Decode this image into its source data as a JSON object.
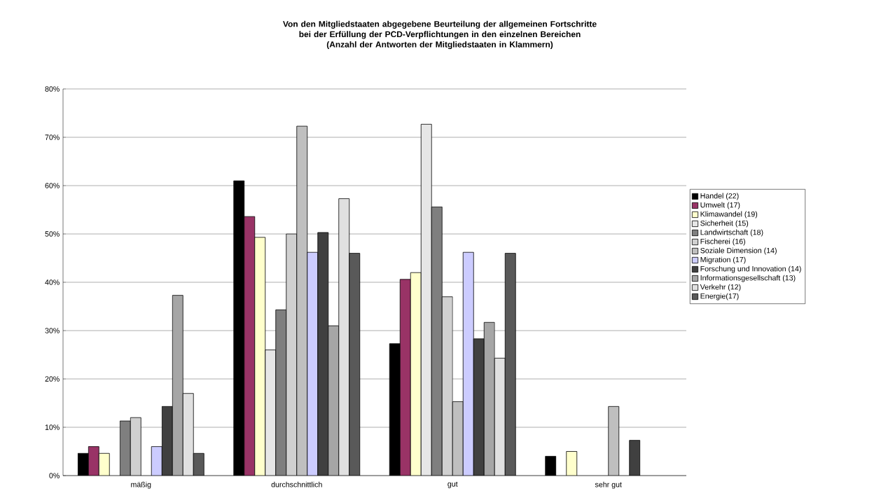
{
  "chart_data": {
    "type": "bar",
    "title": "Von den Mitgliedstaaten abgegebene Beurteilung der allgemeinen Fortschritte bei der Erfüllung der PCD-Verpflichtungen in den einzelnen Bereichen",
    "subtitle": "(Anzahl der Antworten der Mitgliedstaaten in Klammern)",
    "categories": [
      "mäßig",
      "durchschnittlich",
      "gut",
      "sehr gut"
    ],
    "series": [
      {
        "name": "Handel (22)",
        "color": "#000000",
        "values": [
          4.6,
          61,
          27.3,
          4
        ]
      },
      {
        "name": "Umwelt (17)",
        "color": "#993366",
        "values": [
          6,
          53.6,
          40.6,
          null
        ]
      },
      {
        "name": "Klimawandel (19)",
        "color": "#ffffcc",
        "values": [
          4.6,
          49.3,
          42,
          5
        ]
      },
      {
        "name": "Sicherheit (15)",
        "color": "#e6e6e6",
        "values": [
          null,
          26,
          72.7,
          null
        ]
      },
      {
        "name": "Landwirtschaft (18)",
        "color": "#7f7f7f",
        "values": [
          11.3,
          34.3,
          55.6,
          null
        ]
      },
      {
        "name": "Fischerei (16)",
        "color": "#d0d0d0",
        "values": [
          12,
          50,
          37,
          null
        ]
      },
      {
        "name": "Soziale Dimension (14)",
        "color": "#bfbfbf",
        "values": [
          null,
          72.3,
          15.3,
          14.3
        ]
      },
      {
        "name": "Migration (17)",
        "color": "#ccccff",
        "values": [
          6,
          46.2,
          46.2,
          null
        ]
      },
      {
        "name": "Forschung und Innovation (14)",
        "color": "#404040",
        "values": [
          14.3,
          50.3,
          28.3,
          7.3
        ]
      },
      {
        "name": "Informationsgesellschaft (13)",
        "color": "#a6a6a6",
        "values": [
          37.3,
          31,
          31.7,
          null
        ]
      },
      {
        "name": "Verkehr (12)",
        "color": "#e0e0e0",
        "values": [
          17,
          57.3,
          24.3,
          null
        ]
      },
      {
        "name": "Energie(17)",
        "color": "#595959",
        "values": [
          4.6,
          46,
          46,
          null
        ]
      }
    ],
    "ylim": [
      0,
      80
    ],
    "yticks": [
      {
        "value": 0,
        "label": "0%"
      },
      {
        "value": 10,
        "label": "10%"
      },
      {
        "value": 20,
        "label": "20%"
      },
      {
        "value": 30,
        "label": "30%"
      },
      {
        "value": 40,
        "label": "40%"
      },
      {
        "value": 50,
        "label": "50%"
      },
      {
        "value": 60,
        "label": "60%"
      },
      {
        "value": 70,
        "label": "70%"
      },
      {
        "value": 80,
        "label": "80%"
      }
    ],
    "grid": "y",
    "legend": "right"
  }
}
